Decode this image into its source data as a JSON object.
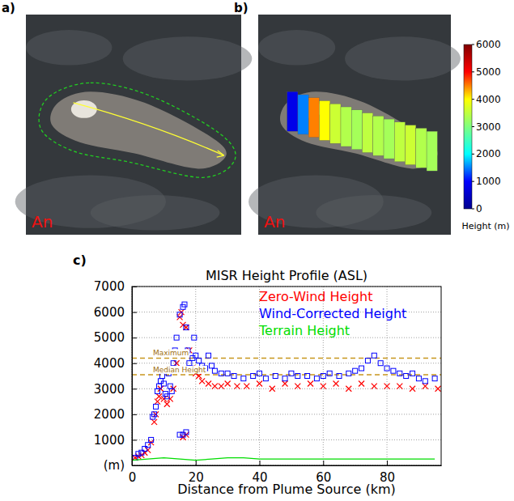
{
  "images": {
    "panels": [
      {
        "letter": "a)",
        "label": "An"
      },
      {
        "letter": "b)",
        "label": "An",
        "heights": [
          800,
          1500,
          4500,
          4000,
          3600,
          3400,
          3300,
          3500,
          3400,
          3300,
          3500,
          3600,
          3400,
          3300
        ]
      }
    ],
    "colorbar": {
      "title": "Height (m)",
      "range": [
        0,
        6000
      ],
      "ticks": [
        0,
        1000,
        2000,
        3000,
        4000,
        5000,
        6000
      ]
    }
  },
  "chart_data": {
    "type": "scatter",
    "panel_label": "c)",
    "title": "MISR Height Profile (ASL)",
    "x_label": "Distance from Plume Source (km)",
    "xlim": [
      0,
      97
    ],
    "ylim": [
      0,
      7000
    ],
    "xticks": [
      0,
      20,
      40,
      60,
      80
    ],
    "yticks": [
      {
        "value": 0,
        "label": "(m)"
      },
      1000,
      2000,
      3000,
      4000,
      5000,
      6000,
      7000
    ],
    "grid": true,
    "legend": "top-right",
    "series": [
      {
        "name": "Zero-Wind Height",
        "color": "#ff0000",
        "marker": "x",
        "x": [
          1,
          2,
          3,
          4,
          5,
          6,
          7,
          7.5,
          8,
          8.5,
          9,
          10,
          11,
          12,
          13,
          14,
          15,
          15.5,
          16,
          17,
          18,
          19,
          20,
          21,
          22,
          24,
          26,
          28,
          30,
          33,
          36,
          40,
          44,
          48,
          52,
          56,
          60,
          64,
          68,
          72,
          76,
          80,
          84,
          88,
          92,
          96,
          16,
          17
        ],
        "values": [
          300,
          350,
          400,
          500,
          600,
          900,
          1700,
          2000,
          2500,
          2700,
          3000,
          2600,
          2400,
          2600,
          3000,
          4000,
          5800,
          6000,
          5500,
          5400,
          4500,
          3800,
          3600,
          3500,
          3300,
          3200,
          3100,
          3100,
          3200,
          3100,
          3100,
          3200,
          3000,
          3200,
          3100,
          3200,
          3100,
          3200,
          3000,
          3200,
          3100,
          3100,
          3100,
          3000,
          3100,
          3000,
          1100,
          1200
        ]
      },
      {
        "name": "Wind-Corrected Height",
        "color": "#0000ff",
        "marker": "square",
        "x": [
          1,
          2,
          3,
          4,
          5,
          6,
          6.5,
          7,
          7.5,
          8,
          8.5,
          9,
          9.5,
          10,
          10.5,
          11,
          11.5,
          12,
          12.5,
          13,
          13.5,
          14,
          15,
          16,
          16.5,
          17,
          17.5,
          18,
          18.5,
          19,
          19.5,
          20,
          21,
          22,
          23,
          24,
          25,
          26,
          28,
          30,
          32,
          35,
          38,
          40,
          42,
          45,
          48,
          50,
          52,
          55,
          58,
          60,
          62,
          65,
          68,
          70,
          72,
          74,
          76,
          78,
          80,
          82,
          84,
          86,
          88,
          90,
          92,
          95,
          15,
          16,
          17
        ],
        "values": [
          300,
          450,
          500,
          650,
          800,
          1000,
          1900,
          2000,
          2300,
          2900,
          3100,
          3300,
          3500,
          3200,
          2800,
          2700,
          3600,
          3100,
          2900,
          4000,
          4500,
          5000,
          5900,
          6200,
          6300,
          5400,
          4500,
          4000,
          3800,
          4200,
          5000,
          4300,
          4100,
          3900,
          3800,
          4300,
          3900,
          3700,
          3600,
          3600,
          3500,
          3400,
          3500,
          3600,
          3400,
          3500,
          3400,
          3600,
          3500,
          3500,
          3400,
          3500,
          3600,
          3500,
          3600,
          3700,
          3800,
          4100,
          4300,
          4000,
          3800,
          3700,
          3600,
          3500,
          3600,
          3400,
          3300,
          3400,
          1200,
          1200,
          1300
        ]
      },
      {
        "name": "Terrain Height",
        "color": "#00dd00",
        "type": "line",
        "line_style": "solid",
        "x": [
          0,
          5,
          10,
          15,
          20,
          25,
          30,
          35,
          40,
          45,
          50,
          55,
          60,
          65,
          70,
          75,
          80,
          85,
          90,
          95
        ],
        "values": [
          200,
          250,
          300,
          250,
          200,
          250,
          300,
          300,
          250,
          250,
          250,
          250,
          250,
          250,
          250,
          250,
          250,
          250,
          250,
          250
        ]
      }
    ],
    "annotations": [
      {
        "text": "Maximum",
        "y": 4200
      },
      {
        "text": "Median Height",
        "y": 3550
      }
    ]
  }
}
